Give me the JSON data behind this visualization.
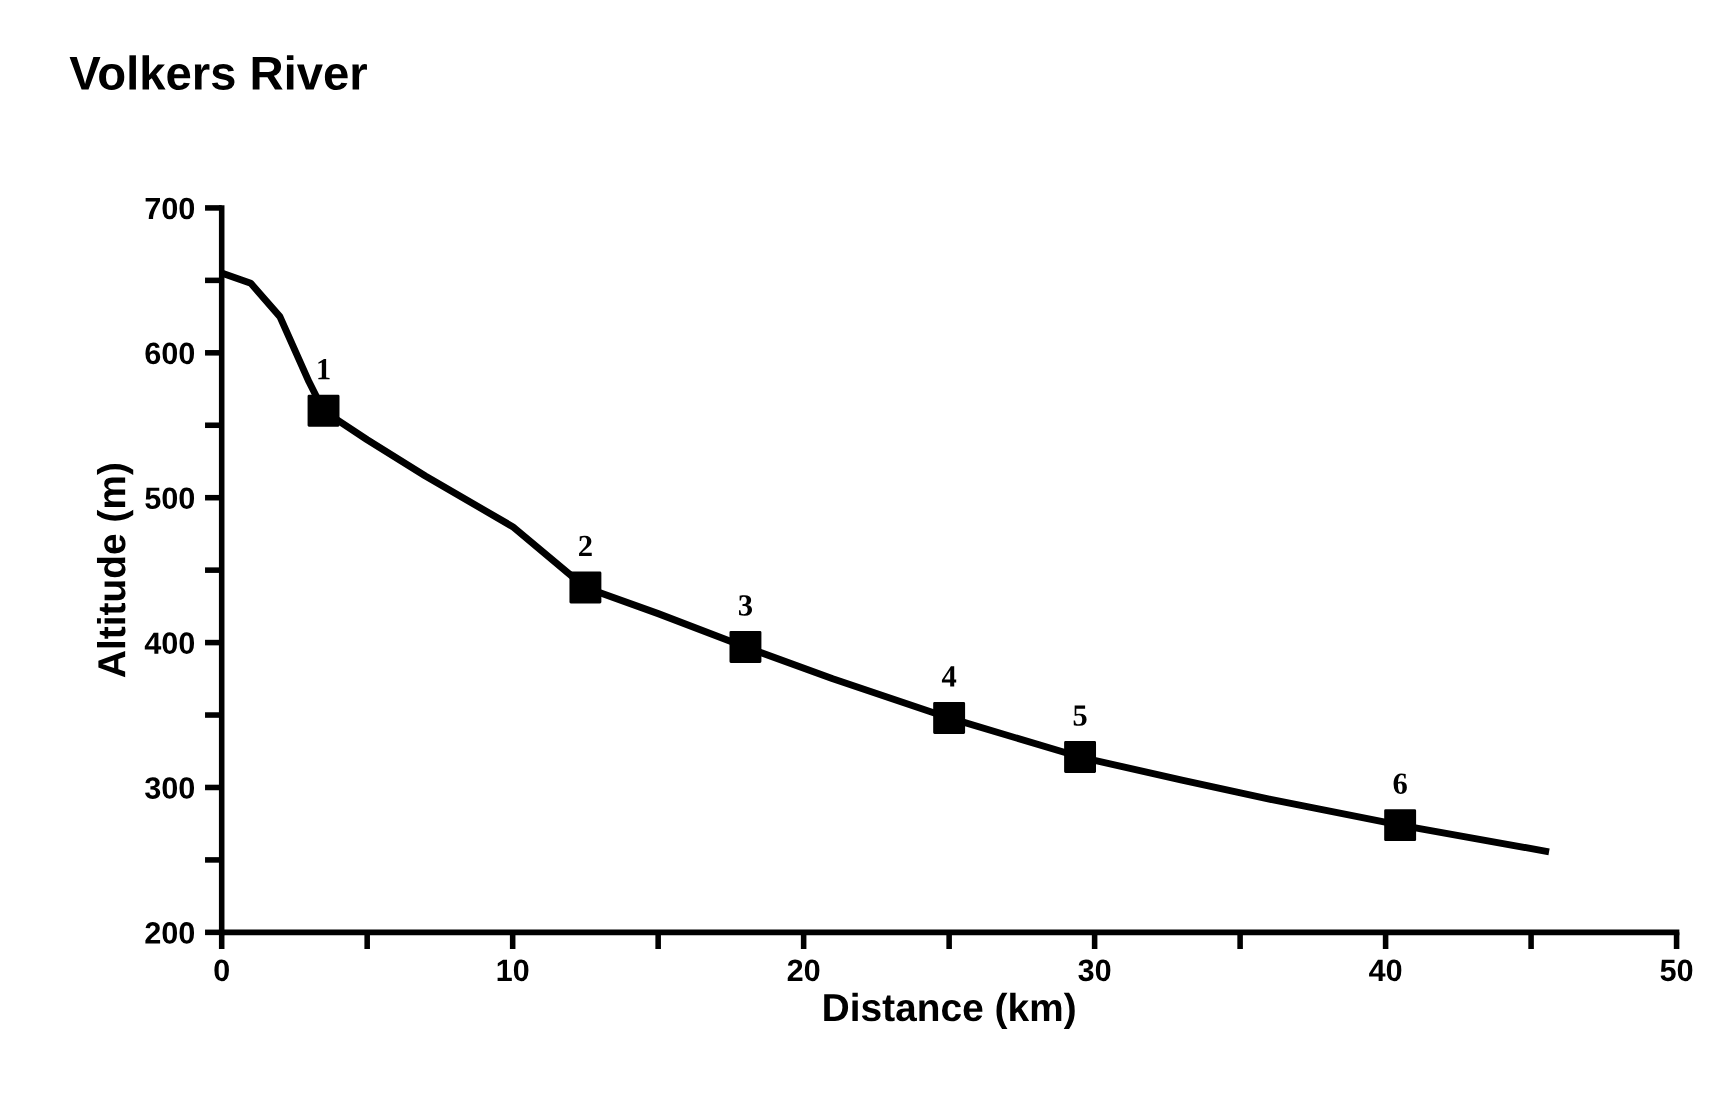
{
  "chart_data": {
    "type": "line",
    "title": "Volkers River",
    "xlabel": "Distance (km)",
    "ylabel": "Altitude (m)",
    "series": [
      {
        "color": "#000000",
        "marker": "none",
        "x": [
          0,
          1,
          2,
          3,
          3.5,
          5,
          7,
          10,
          12.5,
          15,
          18,
          21,
          25,
          29.5,
          33,
          36,
          40.5,
          45.5
        ],
        "values": [
          655,
          648,
          625,
          580,
          560,
          540,
          515,
          480,
          438,
          420,
          397,
          375,
          348,
          321,
          305,
          292,
          274,
          256
        ]
      },
      {
        "type": "scatter",
        "color": "#000000",
        "marker": "square",
        "x": [
          3.5,
          12.5,
          18,
          25,
          29.5,
          40.5
        ],
        "values": [
          560,
          438,
          397,
          348,
          321,
          274
        ]
      }
    ],
    "annotations": [
      {
        "text": "1",
        "x": 3.5,
        "y": 560
      },
      {
        "text": "2",
        "x": 12.5,
        "y": 438
      },
      {
        "text": "3",
        "x": 18,
        "y": 397
      },
      {
        "text": "4",
        "x": 25,
        "y": 348
      },
      {
        "text": "5",
        "x": 29.5,
        "y": 321
      },
      {
        "text": "6",
        "x": 40.5,
        "y": 274
      }
    ],
    "xlim": [
      0,
      50
    ],
    "ylim": [
      200,
      700
    ],
    "xticks": [
      0,
      {
        "value": 5,
        "label": null
      },
      10,
      {
        "value": 15,
        "label": null
      },
      20,
      {
        "value": 25,
        "label": null
      },
      30,
      {
        "value": 35,
        "label": null
      },
      40,
      {
        "value": 45,
        "label": null
      },
      50
    ],
    "yticks": [
      200,
      {
        "value": 250,
        "label": null
      },
      300,
      {
        "value": 350,
        "label": null
      },
      400,
      {
        "value": 450,
        "label": null
      },
      500,
      {
        "value": 550,
        "label": null
      },
      600,
      {
        "value": 650,
        "label": null
      },
      700
    ],
    "grid": false,
    "legend": false
  }
}
